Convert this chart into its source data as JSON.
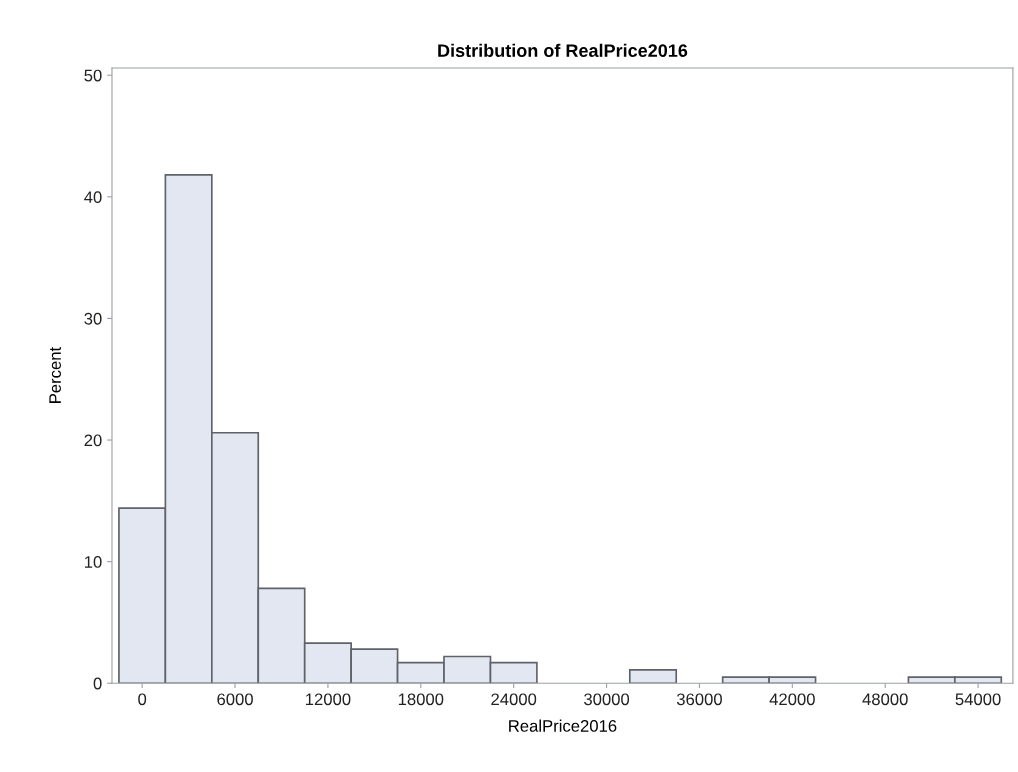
{
  "chart_data": {
    "type": "histogram",
    "title": "Distribution of RealPrice2016",
    "xlabel": "RealPrice2016",
    "ylabel": "Percent",
    "bins": [
      -1500,
      1500,
      4500,
      7500,
      10500,
      13500,
      16500,
      19500,
      22500,
      25500,
      28500,
      31500,
      34500,
      37500,
      40500,
      43500,
      46500,
      49500,
      52500,
      55500
    ],
    "values": [
      14.4,
      41.8,
      20.6,
      7.8,
      3.3,
      2.8,
      1.7,
      2.2,
      1.7,
      0,
      0,
      1.1,
      0,
      0.5,
      0.5,
      0,
      0,
      0.5,
      0.5
    ],
    "color": "#e3e7f1",
    "xlim": [
      -1950,
      56250
    ],
    "xticks": [
      0,
      6000,
      12000,
      18000,
      24000,
      30000,
      36000,
      42000,
      48000,
      54000
    ],
    "ylim": [
      0,
      50.6
    ],
    "yticks": [
      0,
      10,
      20,
      30,
      40,
      50
    ],
    "grid": false
  }
}
